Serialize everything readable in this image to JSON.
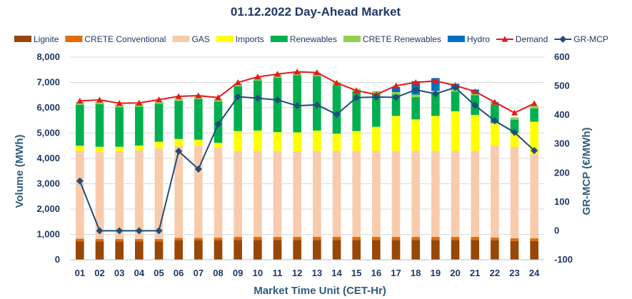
{
  "chart_data": {
    "type": "bar",
    "title": "01.12.2022  Day-Ahead Market",
    "xlabel": "Market Time Unit (CET-Hr)",
    "ylabel": "Volume (MWh)",
    "y2label": "GR-MCP (€/MWh)",
    "ylim": [
      0,
      8000
    ],
    "y2lim": [
      -100,
      600
    ],
    "yticks": [
      "0",
      "1,000",
      "2,000",
      "3,000",
      "4,000",
      "5,000",
      "6,000",
      "7,000",
      "8,000"
    ],
    "y2ticks": [
      "-100",
      "0",
      "100",
      "200",
      "300",
      "400",
      "500",
      "600"
    ],
    "categories": [
      "01",
      "02",
      "03",
      "04",
      "05",
      "06",
      "07",
      "08",
      "09",
      "10",
      "11",
      "12",
      "13",
      "14",
      "15",
      "16",
      "17",
      "18",
      "19",
      "20",
      "21",
      "22",
      "23",
      "24"
    ],
    "stacked": true,
    "grid": true,
    "legend_position": "top",
    "series": [
      {
        "name": "Lignite",
        "kind": "bar",
        "color": "#974706",
        "values": [
          730,
          720,
          720,
          720,
          720,
          760,
          760,
          760,
          780,
          780,
          780,
          780,
          780,
          780,
          780,
          780,
          780,
          780,
          780,
          780,
          780,
          760,
          740,
          740
        ]
      },
      {
        "name": "CRETE Conventional",
        "kind": "bar",
        "color": "#e26b0a",
        "values": [
          100,
          100,
          100,
          100,
          100,
          100,
          100,
          110,
          120,
          120,
          120,
          120,
          120,
          120,
          120,
          120,
          120,
          120,
          120,
          120,
          120,
          120,
          110,
          110
        ]
      },
      {
        "name": "GAS",
        "kind": "bar",
        "color": "#f8cbad",
        "values": [
          3470,
          3430,
          3450,
          3500,
          3580,
          3620,
          3640,
          3560,
          3400,
          3400,
          3400,
          3380,
          3400,
          3400,
          3400,
          3400,
          3400,
          3400,
          3400,
          3400,
          3400,
          3620,
          3600,
          3320
        ]
      },
      {
        "name": "Imports",
        "kind": "bar",
        "color": "#ffff00",
        "values": [
          200,
          210,
          190,
          190,
          260,
          290,
          240,
          190,
          780,
          800,
          740,
          750,
          800,
          680,
          780,
          950,
          1380,
          1240,
          1380,
          1560,
          1420,
          890,
          560,
          1280
        ]
      },
      {
        "name": "Renewables",
        "kind": "bar",
        "color": "#00b050",
        "values": [
          1620,
          1680,
          1560,
          1530,
          1500,
          1500,
          1600,
          1620,
          1770,
          1980,
          2140,
          2250,
          2140,
          1900,
          1570,
          1310,
          840,
          880,
          890,
          780,
          780,
          730,
          520,
          520
        ]
      },
      {
        "name": "CRETE Renewables",
        "kind": "bar",
        "color": "#92d050",
        "values": [
          100,
          100,
          100,
          100,
          100,
          100,
          100,
          100,
          110,
          120,
          130,
          140,
          130,
          130,
          100,
          100,
          100,
          100,
          100,
          100,
          100,
          90,
          90,
          90
        ]
      },
      {
        "name": "Hydro",
        "kind": "bar",
        "color": "#0070c0",
        "values": [
          0,
          0,
          0,
          0,
          0,
          0,
          0,
          0,
          0,
          0,
          0,
          0,
          0,
          0,
          0,
          0,
          200,
          530,
          500,
          210,
          120,
          20,
          0,
          0
        ]
      },
      {
        "name": "Demand",
        "kind": "line",
        "axis": "left",
        "color": "#e31a1c",
        "marker": "triangle",
        "values": [
          6270,
          6310,
          6180,
          6190,
          6320,
          6450,
          6480,
          6400,
          7000,
          7220,
          7330,
          7420,
          7390,
          6980,
          6680,
          6520,
          6870,
          7000,
          7060,
          6880,
          6640,
          6220,
          5800,
          6170
        ]
      },
      {
        "name": "GR-MCP",
        "kind": "line",
        "axis": "right",
        "color": "#1f4e79",
        "marker": "diamond",
        "values": [
          172,
          0,
          0,
          0,
          0,
          275,
          213,
          368,
          463,
          458,
          452,
          432,
          435,
          402,
          460,
          462,
          461,
          487,
          473,
          495,
          433,
          380,
          340,
          277
        ]
      }
    ]
  }
}
